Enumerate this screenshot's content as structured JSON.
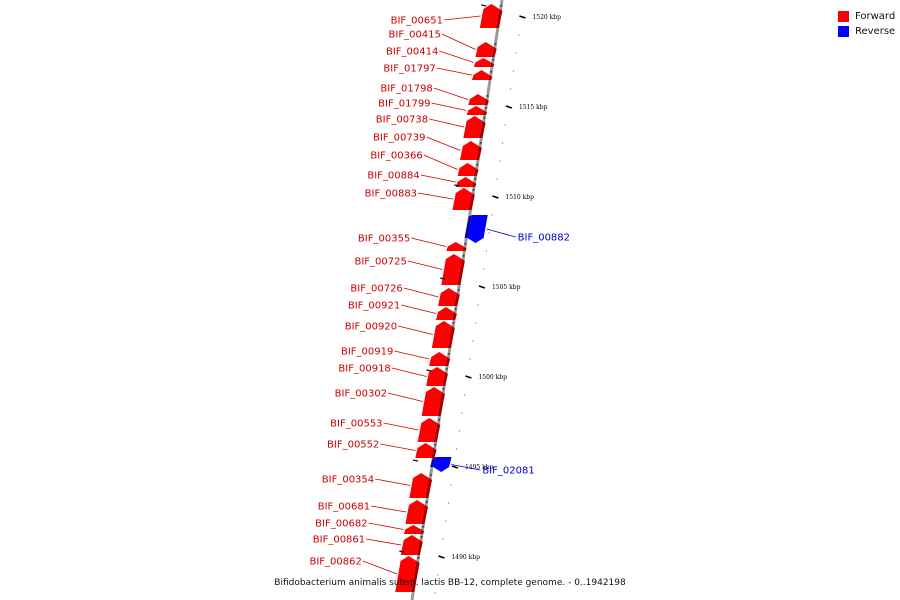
{
  "caption": "Bifidobacterium animalis subsp. lactis BB-12, complete genome. - 0..1942198",
  "legend": [
    {
      "label": "Forward",
      "color": "#ff0000"
    },
    {
      "label": "Reverse",
      "color": "#0000ff"
    }
  ],
  "colors": {
    "forward": "#ff0000",
    "reverse": "#0000ff",
    "forward_label": "#cc0000",
    "reverse_label": "#0000cc",
    "backbone": "#9a9a9a"
  },
  "ticks": [
    {
      "label": "1520 kbp",
      "kbp": 1520
    },
    {
      "label": "1515 kbp",
      "kbp": 1515
    },
    {
      "label": "1510 kbp",
      "kbp": 1510
    },
    {
      "label": "1505 kbp",
      "kbp": 1505
    },
    {
      "label": "1500 kbp",
      "kbp": 1500
    },
    {
      "label": "1495 kbp",
      "kbp": 1495
    },
    {
      "label": "1490 kbp",
      "kbp": 1490
    }
  ],
  "genes": [
    {
      "name": "BIF_00651",
      "strand": "forward"
    },
    {
      "name": "BIF_00415",
      "strand": "forward"
    },
    {
      "name": "BIF_00414",
      "strand": "forward"
    },
    {
      "name": "BIF_01797",
      "strand": "forward"
    },
    {
      "name": "BIF_01798",
      "strand": "forward"
    },
    {
      "name": "BIF_01799",
      "strand": "forward"
    },
    {
      "name": "BIF_00738",
      "strand": "forward"
    },
    {
      "name": "BIF_00739",
      "strand": "forward"
    },
    {
      "name": "BIF_00366",
      "strand": "forward"
    },
    {
      "name": "BIF_00884",
      "strand": "forward"
    },
    {
      "name": "BIF_00883",
      "strand": "forward"
    },
    {
      "name": "BIF_00882",
      "strand": "reverse"
    },
    {
      "name": "BIF_00355",
      "strand": "forward"
    },
    {
      "name": "BIF_00725",
      "strand": "forward"
    },
    {
      "name": "BIF_00726",
      "strand": "forward"
    },
    {
      "name": "BIF_00921",
      "strand": "forward"
    },
    {
      "name": "BIF_00920",
      "strand": "forward"
    },
    {
      "name": "BIF_00919",
      "strand": "forward"
    },
    {
      "name": "BIF_00918",
      "strand": "forward"
    },
    {
      "name": "BIF_00302",
      "strand": "forward"
    },
    {
      "name": "BIF_00553",
      "strand": "forward"
    },
    {
      "name": "BIF_00552",
      "strand": "forward"
    },
    {
      "name": "BIF_02081",
      "strand": "reverse"
    },
    {
      "name": "BIF_00354",
      "strand": "forward"
    },
    {
      "name": "BIF_00681",
      "strand": "forward"
    },
    {
      "name": "BIF_00682",
      "strand": "forward"
    },
    {
      "name": "BIF_00861",
      "strand": "forward"
    },
    {
      "name": "BIF_00862",
      "strand": "forward"
    }
  ]
}
